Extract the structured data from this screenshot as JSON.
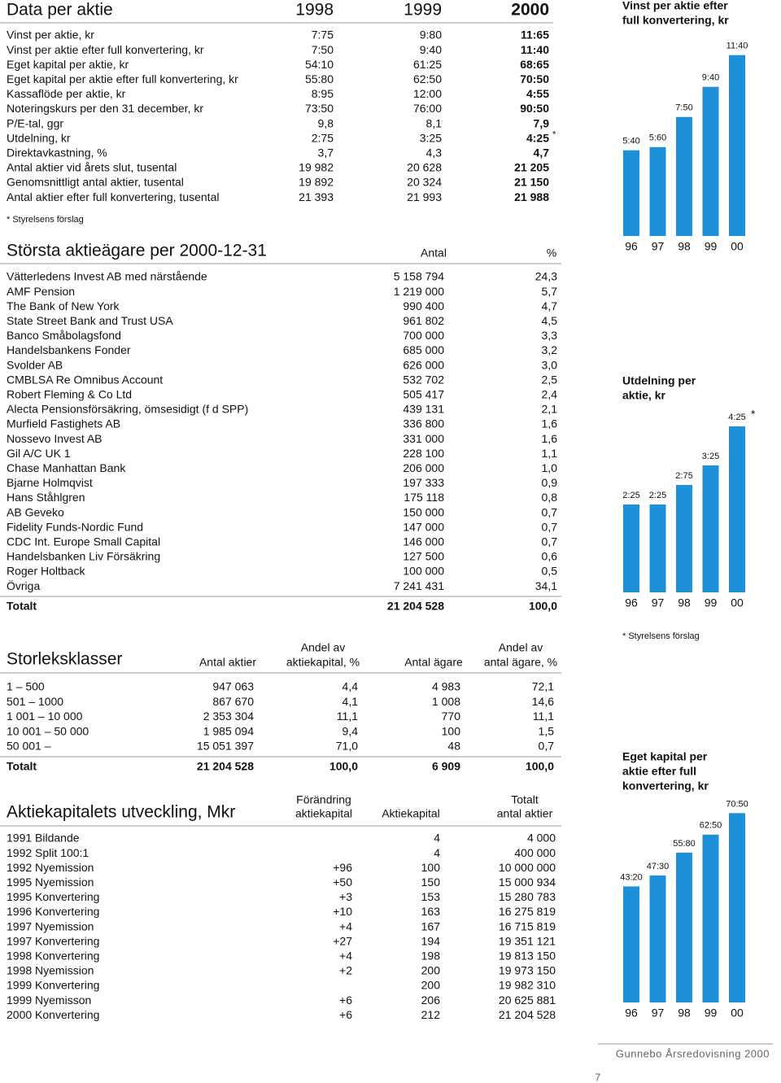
{
  "table1": {
    "headers": [
      "Data per aktie",
      "1998",
      "1999",
      "2000"
    ],
    "rows": [
      [
        "Vinst per aktie, kr",
        "7:75",
        "9:80",
        "11:65"
      ],
      [
        "Vinst per aktie efter full konvertering, kr",
        "7:50",
        "9:40",
        "11:40"
      ],
      [
        "Eget kapital per aktie, kr",
        "54:10",
        "61:25",
        "68:65"
      ],
      [
        "Eget kapital per aktie efter full konvertering, kr",
        "55:80",
        "62:50",
        "70:50"
      ],
      [
        "Kassaflöde per aktie, kr",
        "8:95",
        "12:00",
        "4:55"
      ],
      [
        "Noteringskurs per den 31 december, kr",
        "73:50",
        "76:00",
        "90:50"
      ],
      [
        "P/E-tal, ggr",
        "9,8",
        "8,1",
        "7,9"
      ],
      [
        "Utdelning, kr",
        "2:75",
        "3:25",
        "4:25"
      ],
      [
        "Direktavkastning, %",
        "3,7",
        "4,3",
        "4,7"
      ],
      [
        "Antal aktier vid årets slut, tusental",
        "19 982",
        "20 628",
        "21 205"
      ],
      [
        "Genomsnittligt antal aktier, tusental",
        "19 892",
        "20 324",
        "21 150"
      ],
      [
        "Antal aktier efter full konvertering, tusental",
        "21 393",
        "21 993",
        "21 988"
      ]
    ],
    "footnote_mark": "*",
    "note": "* Styrelsens förslag"
  },
  "owners": {
    "title": "Största aktieägare per 2000-12-31",
    "headers": [
      "Antal",
      "%"
    ],
    "rows": [
      [
        "Vätterledens Invest AB med närstående",
        "5 158 794",
        "24,3"
      ],
      [
        "AMF Pension",
        "1 219 000",
        "5,7"
      ],
      [
        "The Bank of New York",
        "990 400",
        "4,7"
      ],
      [
        "State Street Bank and Trust USA",
        "961 802",
        "4,5"
      ],
      [
        "Banco Småbolagsfond",
        "700 000",
        "3,3"
      ],
      [
        "Handelsbankens Fonder",
        "685 000",
        "3,2"
      ],
      [
        "Svolder AB",
        "626 000",
        "3,0"
      ],
      [
        "CMBLSA Re Omnibus Account",
        "532 702",
        "2,5"
      ],
      [
        "Robert Fleming & Co Ltd",
        "505 417",
        "2,4"
      ],
      [
        "Alecta Pensionsförsäkring, ömsesidigt (f d SPP)",
        "439 131",
        "2,1"
      ],
      [
        "Murfield Fastighets AB",
        "336 800",
        "1,6"
      ],
      [
        "Nossevo Invest AB",
        "331 000",
        "1,6"
      ],
      [
        "Gil A/C UK 1",
        "228 100",
        "1,1"
      ],
      [
        "Chase Manhattan Bank",
        "206 000",
        "1,0"
      ],
      [
        "Bjarne Holmqvist",
        "197 333",
        "0,9"
      ],
      [
        "Hans Ståhlgren",
        "175 118",
        "0,8"
      ],
      [
        "AB Geveko",
        "150 000",
        "0,7"
      ],
      [
        "Fidelity Funds-Nordic Fund",
        "147 000",
        "0,7"
      ],
      [
        "CDC Int. Europe Small Capital",
        "146 000",
        "0,7"
      ],
      [
        "Handelsbanken Liv Försäkring",
        "127 500",
        "0,6"
      ],
      [
        "Roger Holtback",
        "100 000",
        "0,5"
      ],
      [
        "Övriga",
        "7 241 431",
        "34,1"
      ]
    ],
    "total": [
      "Totalt",
      "21 204 528",
      "100,0"
    ]
  },
  "size_classes": {
    "title": "Storleksklasser",
    "headers": [
      [
        "Antal aktier"
      ],
      [
        "Andel av",
        "aktiekapital, %"
      ],
      [
        "Antal ägare"
      ],
      [
        "Andel av",
        "antal ägare, %"
      ]
    ],
    "rows": [
      [
        "1 – 500",
        "947 063",
        "4,4",
        "4 983",
        "72,1"
      ],
      [
        "501 – 1000",
        "867 670",
        "4,1",
        "1 008",
        "14,6"
      ],
      [
        "1 001 – 10 000",
        "2 353 304",
        "11,1",
        "770",
        "11,1"
      ],
      [
        "10 001 – 50 000",
        "1 985 094",
        "9,4",
        "100",
        "1,5"
      ],
      [
        "50 001 –",
        "15 051 397",
        "71,0",
        "48",
        "0,7"
      ]
    ],
    "total": [
      "Totalt",
      "21 204 528",
      "100,0",
      "6 909",
      "100,0"
    ]
  },
  "capital": {
    "title": "Aktiekapitalets utveckling, Mkr",
    "headers": [
      [
        "Förändring",
        "aktiekapital"
      ],
      [
        "Aktiekapital"
      ],
      [
        "Totalt",
        "antal aktier"
      ]
    ],
    "rows": [
      [
        "1991 Bildande",
        null,
        "4",
        "4 000"
      ],
      [
        "1992 Split 100:1",
        null,
        "4",
        "400 000"
      ],
      [
        "1992 Nyemission",
        "+96",
        "100",
        "10 000 000"
      ],
      [
        "1995 Nyemission",
        "+50",
        "150",
        "15 000 934"
      ],
      [
        "1995 Konvertering",
        "+3",
        "153",
        "15 280 783"
      ],
      [
        "1996 Konvertering",
        "+10",
        "163",
        "16 275 819"
      ],
      [
        "1997 Nyemission",
        "+4",
        "167",
        "16 715 819"
      ],
      [
        "1997 Konvertering",
        "+27",
        "194",
        "19 351 121"
      ],
      [
        "1998 Konvertering",
        "+4",
        "198",
        "19 813 150"
      ],
      [
        "1998 Nyemission",
        "+2",
        "200",
        "19 973 150"
      ],
      [
        "1999 Konvertering",
        null,
        "200",
        "19 982 310"
      ],
      [
        "1999 Nyemisson",
        "+6",
        "206",
        "20 625 881"
      ],
      [
        "2000 Konvertering",
        "+6",
        "212",
        "21 204 528"
      ]
    ]
  },
  "charts": [
    {
      "type": "bar",
      "title": [
        "Vinst per aktie efter",
        "full konvertering, kr"
      ],
      "categories": [
        "96",
        "97",
        "98",
        "99",
        "00"
      ],
      "values": [
        5.4,
        5.6,
        7.5,
        9.4,
        11.4
      ],
      "value_labels": [
        "5:40",
        "5:60",
        "7:50",
        "9:40",
        "11:40"
      ],
      "color": "#1e8fd9"
    },
    {
      "type": "bar",
      "title": [
        "Utdelning per",
        "aktie, kr"
      ],
      "categories": [
        "96",
        "97",
        "98",
        "99",
        "00"
      ],
      "values": [
        2.25,
        2.25,
        2.75,
        3.25,
        4.25
      ],
      "value_labels": [
        "2:25",
        "2:25",
        "2:75",
        "3:25",
        "4:25"
      ],
      "color": "#1e8fd9",
      "footnote_mark": "*",
      "note": "* Styrelsens förslag"
    },
    {
      "type": "bar",
      "title": [
        "Eget kapital per",
        "aktie efter full",
        "konvertering, kr"
      ],
      "categories": [
        "96",
        "97",
        "98",
        "99",
        "00"
      ],
      "values": [
        43.2,
        47.3,
        55.8,
        62.5,
        70.5
      ],
      "value_labels": [
        "43:20",
        "47:30",
        "55:80",
        "62:50",
        "70:50"
      ],
      "color": "#1e8fd9"
    }
  ],
  "footer": {
    "brand": "Gunnebo Årsredovisning 2000",
    "page": "7"
  }
}
